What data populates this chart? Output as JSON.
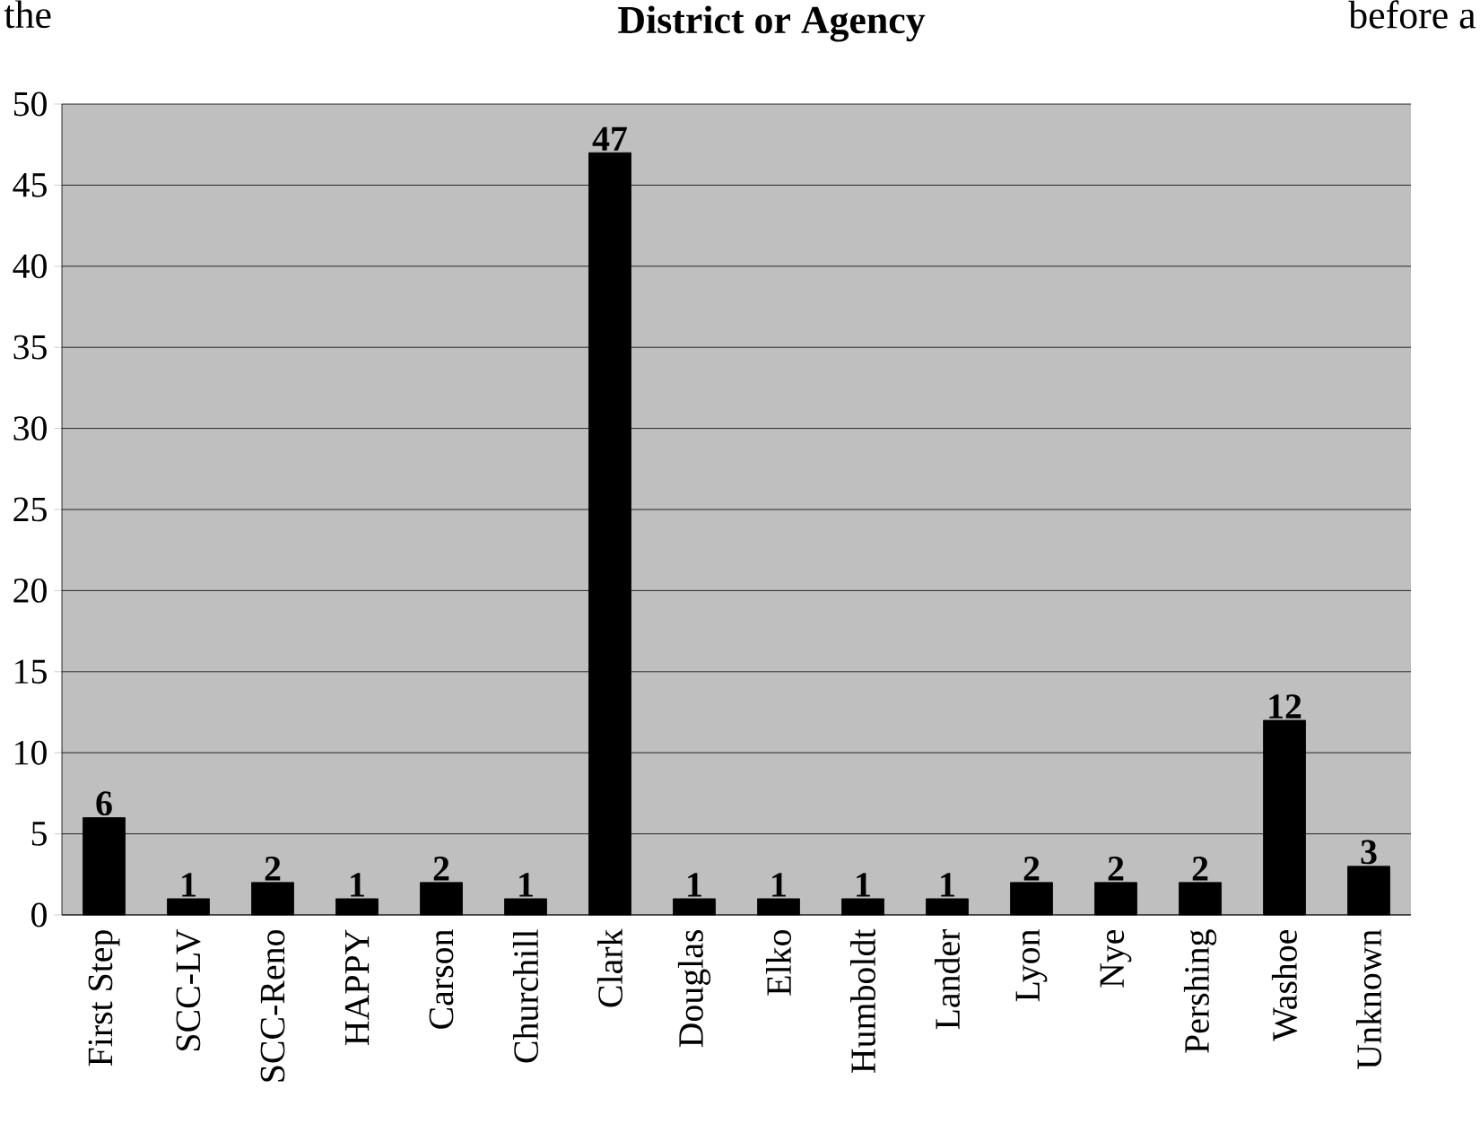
{
  "chart_data": {
    "type": "bar",
    "title": "District or Agency",
    "categories": [
      "First Step",
      "SCC-LV",
      "SCC-Reno",
      "HAPPY",
      "Carson",
      "Churchill",
      "Clark",
      "Douglas",
      "Elko",
      "Humboldt",
      "Lander",
      "Lyon",
      "Nye",
      "Pershing",
      "Washoe",
      "Unknown"
    ],
    "values": [
      6,
      1,
      2,
      1,
      2,
      1,
      47,
      1,
      1,
      1,
      1,
      2,
      2,
      2,
      12,
      3
    ],
    "color": "#000000",
    "ylim": [
      0,
      50
    ],
    "yticks": [
      0,
      5,
      10,
      15,
      20,
      25,
      30,
      35,
      40,
      45,
      50
    ],
    "grid": "y",
    "data_labels": true,
    "annotations": [
      "the",
      "before a"
    ]
  }
}
